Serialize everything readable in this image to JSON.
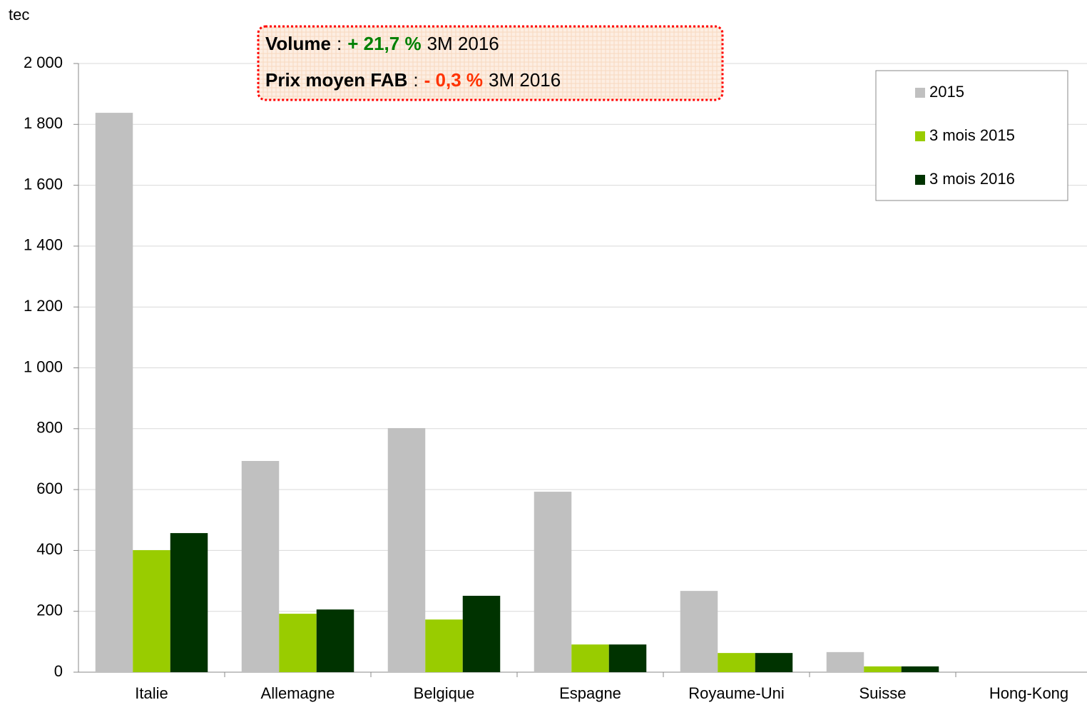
{
  "chart_data": {
    "type": "bar",
    "y_label": "tec",
    "categories": [
      "Italie",
      "Allemagne",
      "Belgique",
      "Espagne",
      "Royaume-Uni",
      "Suisse",
      "Hong-Kong"
    ],
    "series": [
      {
        "name": "2015",
        "color": "#c0c0c0",
        "values": [
          1838,
          694,
          802,
          593,
          267,
          66,
          0
        ]
      },
      {
        "name": "3 mois 2015",
        "color": "#99cc00",
        "values": [
          401,
          192,
          173,
          91,
          63,
          19,
          0
        ]
      },
      {
        "name": "3 mois 2016",
        "color": "#003300",
        "values": [
          457,
          206,
          251,
          91,
          63,
          19,
          0
        ]
      }
    ],
    "ylim": [
      0,
      2000
    ],
    "yticks": [
      0,
      200,
      400,
      600,
      800,
      {
        "value": 1000,
        "label": "1 000"
      },
      {
        "value": 1200,
        "label": "1 200"
      },
      {
        "value": 1400,
        "label": "1 400"
      },
      {
        "value": 1600,
        "label": "1 600"
      },
      {
        "value": 1800,
        "label": "1 800"
      },
      {
        "value": 2000,
        "label": "2 000"
      }
    ],
    "grid": true,
    "legend": "upper right",
    "annotations": [
      {
        "parts": [
          {
            "text": "Volume",
            "color": "#000000",
            "bold": true
          },
          {
            "text": ":",
            "color": "#000000",
            "bold": false
          },
          {
            "text": "+ 21,7 %",
            "color": "#008000",
            "bold": true
          },
          {
            "text": "3M 2016",
            "color": "#000000",
            "bold": false
          }
        ]
      },
      {
        "parts": [
          {
            "text": "Prix moyen FAB",
            "color": "#000000",
            "bold": true
          },
          {
            "text": ":",
            "color": "#000000",
            "bold": false
          },
          {
            "text": "- 0,3 %",
            "color": "#ff3300",
            "bold": true
          },
          {
            "text": "3M 2016",
            "color": "#000000",
            "bold": false
          }
        ]
      }
    ]
  }
}
